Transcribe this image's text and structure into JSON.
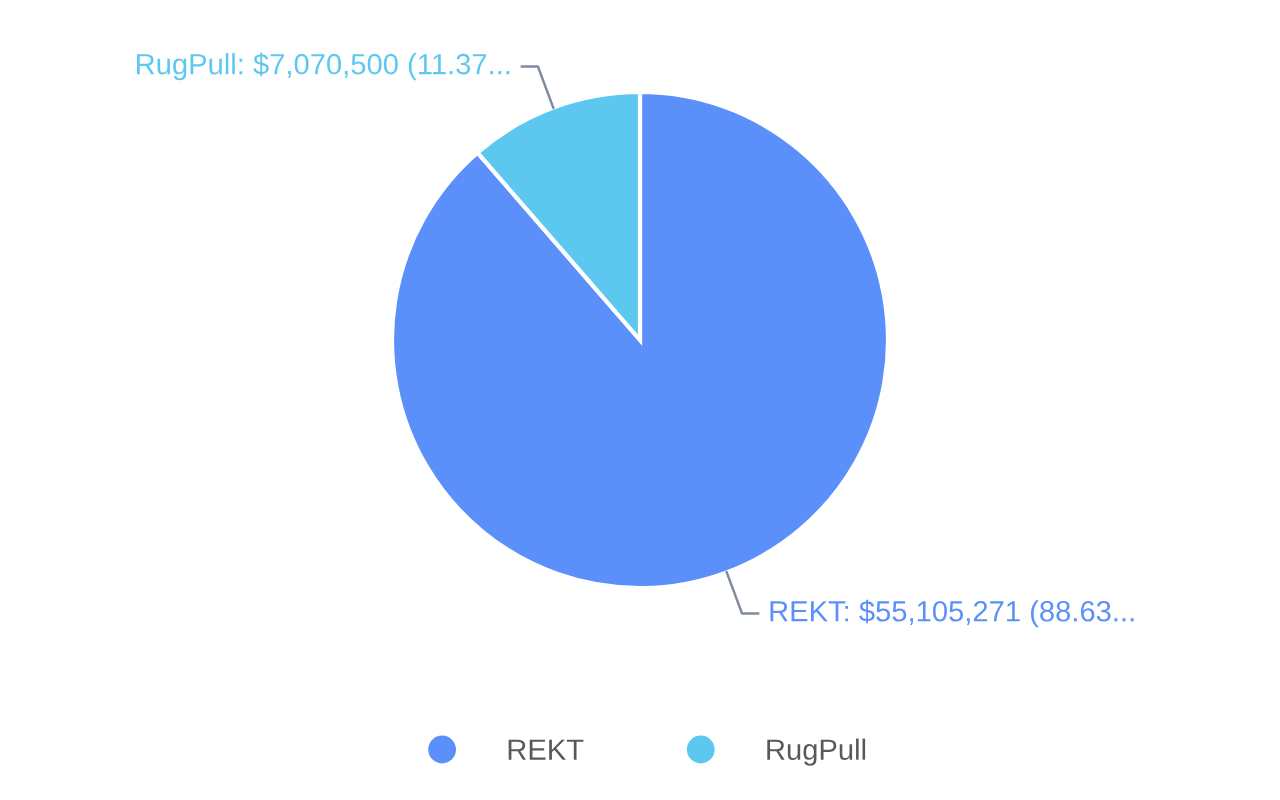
{
  "chart_data": {
    "type": "pie",
    "categories": [
      "REKT",
      "RugPull"
    ],
    "values": [
      55105271,
      7070500
    ],
    "colors": [
      "#5b8ff9",
      "#5cc8f0"
    ],
    "value_labels": [
      "REKT: $55,105,271 (88.63...",
      "RugPull: $7,070,500 (11.37..."
    ],
    "legend": "bottom"
  }
}
